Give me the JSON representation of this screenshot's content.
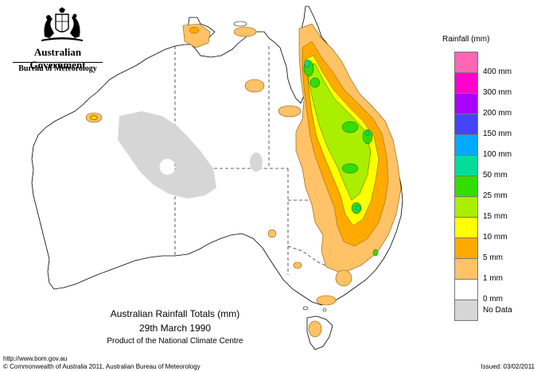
{
  "header": {
    "government": "Australian Government",
    "agency": "Bureau of Meteorology"
  },
  "map_title": {
    "line1": "Australian Rainfall Totals (mm)",
    "line2": "29th March 1990",
    "line3": "Product of the National Climate Centre"
  },
  "legend": {
    "title": "Rainfall (mm)",
    "items": [
      {
        "label": "",
        "color": "#ff66b3"
      },
      {
        "label": "400 mm",
        "color": "#ff00cc"
      },
      {
        "label": "300 mm",
        "color": "#aa00ff"
      },
      {
        "label": "200 mm",
        "color": "#4444ff"
      },
      {
        "label": "150 mm",
        "color": "#00aaff"
      },
      {
        "label": "100 mm",
        "color": "#00dd99"
      },
      {
        "label": "50 mm",
        "color": "#33dd00"
      },
      {
        "label": "25 mm",
        "color": "#aaee00"
      },
      {
        "label": "15 mm",
        "color": "#ffff00"
      },
      {
        "label": "10 mm",
        "color": "#ffaa00"
      },
      {
        "label": "5 mm",
        "color": "#ffc266"
      },
      {
        "label": "1 mm",
        "color": "#ffffff"
      },
      {
        "label": "0 mm",
        "color": "#d6d6d6"
      },
      {
        "label": "No Data",
        "color": ""
      }
    ]
  },
  "footer": {
    "url": "http://www.bom.gov.au",
    "copyright": "© Commonwealth of Australia 2011, Australian Bureau of Meteorology",
    "issued": "Issued: 03/02/2011"
  }
}
